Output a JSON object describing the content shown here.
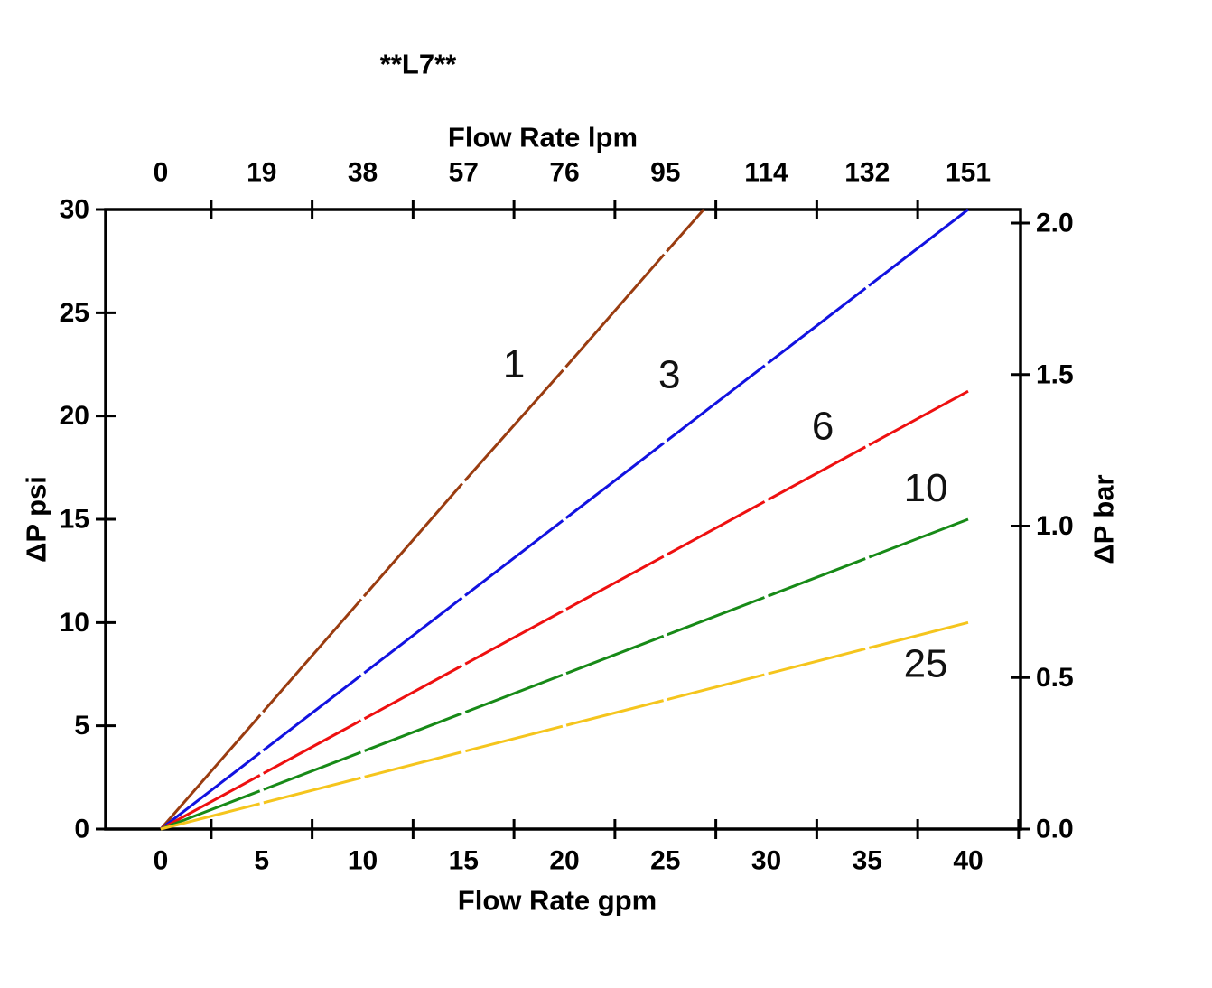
{
  "title": "**L7**",
  "chart_data": {
    "type": "line",
    "title": "**L7**",
    "top_axis": {
      "label": "Flow Rate lpm",
      "tick_labels": [
        "0",
        "19",
        "38",
        "57",
        "76",
        "95",
        "114",
        "132",
        "151"
      ],
      "tick_positions_gpm": [
        0,
        5,
        10,
        15,
        20,
        25,
        30,
        35,
        40
      ],
      "minor_ticks_gpm": [
        2.5,
        7.5,
        12.5,
        17.5,
        22.5,
        27.5,
        32.5,
        37.5
      ]
    },
    "bottom_axis": {
      "label": "Flow Rate gpm",
      "tick_labels": [
        "0",
        "5",
        "10",
        "15",
        "20",
        "25",
        "30",
        "35",
        "40"
      ],
      "tick_positions_gpm": [
        0,
        5,
        10,
        15,
        20,
        25,
        30,
        35,
        40
      ],
      "minor_ticks_gpm": [
        2.5,
        7.5,
        12.5,
        17.5,
        22.5,
        27.5,
        32.5,
        37.5,
        42.5
      ],
      "range_gpm": [
        -2.7,
        42.6
      ]
    },
    "left_axis": {
      "label": "ΔP psi",
      "tick_labels": [
        "0",
        "5",
        "10",
        "15",
        "20",
        "25",
        "30"
      ],
      "tick_values_psi": [
        0,
        5,
        10,
        15,
        20,
        25,
        30
      ],
      "range_psi": [
        0,
        30
      ]
    },
    "right_axis": {
      "label": "ΔP bar",
      "tick_labels": [
        "0.0",
        "0.5",
        "1.0",
        "1.5",
        "2.0"
      ],
      "tick_values_bar": [
        0,
        0.5,
        1.0,
        1.5,
        2.0
      ],
      "range_bar": [
        0,
        2.045
      ]
    },
    "series": [
      {
        "name": "1",
        "color": "#9A3C10",
        "x_gpm": [
          0,
          5,
          10,
          15,
          20,
          25,
          26.9
        ],
        "y_psi": [
          0,
          5.6,
          11.2,
          16.8,
          22.3,
          27.9,
          30
        ],
        "label": {
          "text": "1",
          "gpm": 17.5,
          "psi": 22.5
        }
      },
      {
        "name": "3",
        "color": "#1212E0",
        "x_gpm": [
          0,
          5,
          10,
          15,
          20,
          25,
          30,
          35,
          40
        ],
        "y_psi": [
          0,
          3.75,
          7.5,
          11.25,
          15,
          18.75,
          22.5,
          26.25,
          30
        ],
        "label": {
          "text": "3",
          "gpm": 25.2,
          "psi": 22.0
        }
      },
      {
        "name": "6",
        "color": "#EE1010",
        "x_gpm": [
          0,
          5,
          10,
          15,
          20,
          25,
          30,
          35,
          40
        ],
        "y_psi": [
          0,
          2.65,
          5.3,
          7.95,
          10.6,
          13.25,
          15.9,
          18.55,
          21.2
        ],
        "label": {
          "text": "6",
          "gpm": 32.8,
          "psi": 19.5
        }
      },
      {
        "name": "10",
        "color": "#178A17",
        "x_gpm": [
          0,
          5,
          10,
          15,
          20,
          25,
          30,
          35,
          40
        ],
        "y_psi": [
          0,
          1.88,
          3.75,
          5.63,
          7.5,
          9.38,
          11.25,
          13.13,
          15
        ],
        "label": {
          "text": "10",
          "gpm": 37.9,
          "psi": 16.5
        }
      },
      {
        "name": "25",
        "color": "#F5C51D",
        "x_gpm": [
          0,
          5,
          10,
          15,
          20,
          25,
          30,
          35,
          40
        ],
        "y_psi": [
          0,
          1.25,
          2.5,
          3.75,
          5,
          6.25,
          7.5,
          8.75,
          10
        ],
        "label": {
          "text": "25",
          "gpm": 37.9,
          "psi": 8.0
        }
      }
    ]
  }
}
